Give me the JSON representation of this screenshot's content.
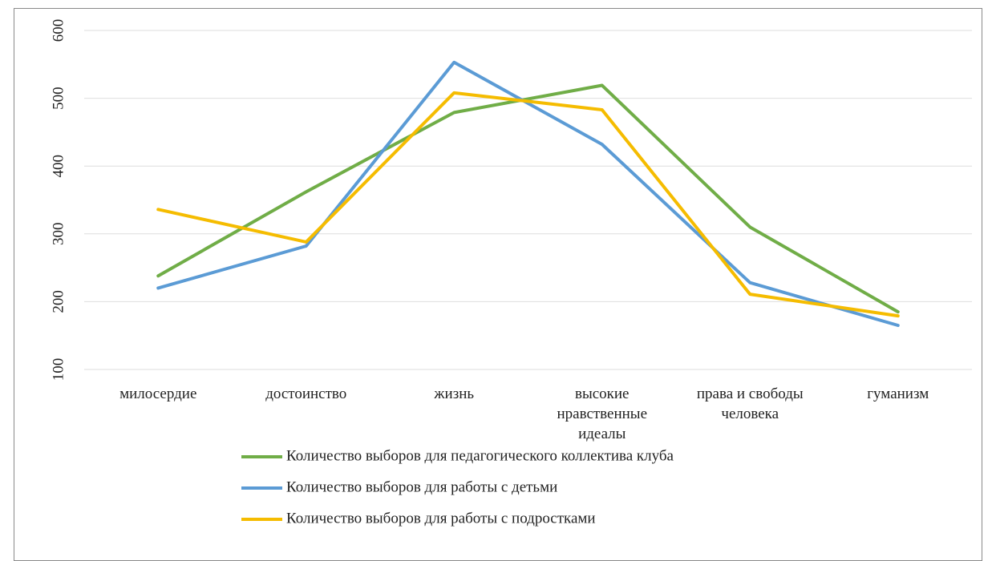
{
  "chart_data": {
    "type": "line",
    "categories": [
      [
        "милосердие"
      ],
      [
        "достоинство"
      ],
      [
        "жизнь"
      ],
      [
        "высокие",
        "нравственные",
        "идеалы"
      ],
      [
        "права и свободы",
        "человека"
      ],
      [
        "гуманизм"
      ]
    ],
    "ylim": [
      100,
      600
    ],
    "yticks": [
      100,
      200,
      300,
      400,
      500,
      600
    ],
    "grid": true,
    "legend_position": "bottom",
    "series": [
      {
        "name": "Количество выборов для педагогического коллектива клуба",
        "color": "#70ad47",
        "values": [
          238,
          362,
          479,
          519,
          310,
          185
        ]
      },
      {
        "name": "Количество выборов для работы с детьми",
        "color": "#5b9bd5",
        "values": [
          220,
          282,
          553,
          432,
          228,
          165
        ]
      },
      {
        "name": "Количество выборов для работы с подростками",
        "color": "#f5bc00",
        "values": [
          336,
          288,
          508,
          483,
          211,
          179
        ]
      }
    ]
  }
}
